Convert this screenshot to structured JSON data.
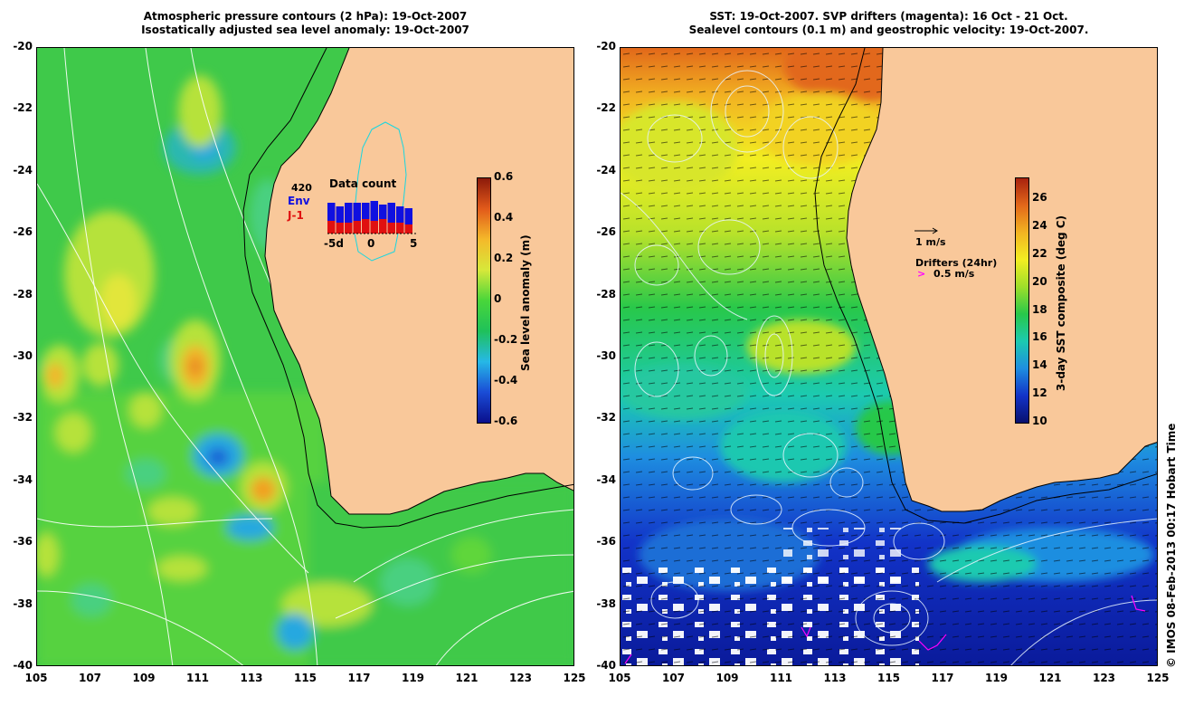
{
  "left_panel": {
    "title_line1": "Atmospheric pressure contours (2 hPa): 19-Oct-2007",
    "title_line2": "Isostatically adjusted sea level anomaly: 19-Oct-2007",
    "colorbar": {
      "label": "Sea level anomaly (m)",
      "ticks": [
        "0.6",
        "0.4",
        "0.2",
        "0",
        "-0.2",
        "-0.4",
        "-0.6"
      ],
      "range": [
        -0.6,
        0.6
      ],
      "colors": [
        "#0a0f8c",
        "#1a4cd6",
        "#26b8e6",
        "#1fc15a",
        "#49d63a",
        "#d7e83a",
        "#f4b92a",
        "#e25a1a",
        "#8c1a0a"
      ]
    },
    "inset": {
      "title": "Data count",
      "count": "420",
      "series1": "Env",
      "series2": "J-1",
      "xlabel_left": "-5d",
      "xlabel_mid": "0",
      "xlabel_right": "5",
      "env_color": "#1010e0",
      "j1_color": "#e01010"
    }
  },
  "right_panel": {
    "title_line1": "SST: 19-Oct-2007. SVP drifters (magenta): 16 Oct - 21 Oct.",
    "title_line2": "Sealevel contours (0.1 m) and geostrophic velocity: 19-Oct-2007.",
    "colorbar": {
      "label": "3-day SST composite (deg C)",
      "ticks": [
        "26",
        "24",
        "22",
        "20",
        "18",
        "16",
        "14",
        "12",
        "10"
      ],
      "range": [
        10,
        27.5
      ],
      "colors": [
        "#08106e",
        "#1233c8",
        "#1e8ee0",
        "#1ccab0",
        "#28c84a",
        "#9ede2a",
        "#f2ee22",
        "#f2b422",
        "#e2681a",
        "#a8220e"
      ]
    },
    "velocity_scale": "1 m/s",
    "drifter_legend_title": "Drifters (24hr)",
    "drifter_legend_value": "0.5 m/s",
    "drifter_color": "#ff00ff"
  },
  "axes": {
    "x_ticks": [
      "105",
      "107",
      "109",
      "111",
      "113",
      "115",
      "117",
      "119",
      "121",
      "123",
      "125"
    ],
    "y_ticks": [
      "-20",
      "-22",
      "-24",
      "-26",
      "-28",
      "-30",
      "-32",
      "-34",
      "-36",
      "-38",
      "-40"
    ],
    "lon_range": [
      105,
      125
    ],
    "lat_range": [
      -40,
      -20
    ]
  },
  "land_color": "#f9c89a",
  "credit": "© IMOS 08-Feb-2013 00:17 Hobart Time"
}
